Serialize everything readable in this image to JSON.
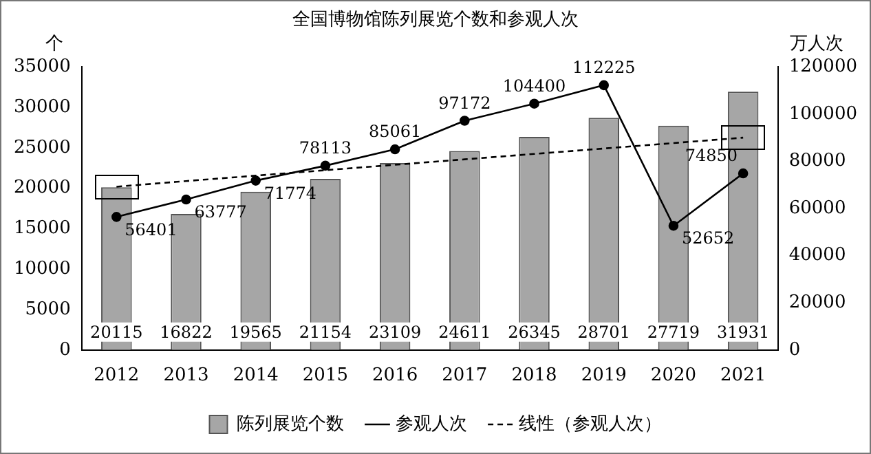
{
  "chart_data": {
    "type": "bar",
    "title": "全国博物馆陈列展览个数和参观人次",
    "ylabel": "个",
    "y2label": "万人次",
    "categories": [
      "2012",
      "2013",
      "2014",
      "2015",
      "2016",
      "2017",
      "2018",
      "2019",
      "2020",
      "2021"
    ],
    "series": [
      {
        "name": "陈列展览个数",
        "color": "#a6a6a6",
        "values": [
          20115,
          16822,
          19565,
          21154,
          23109,
          24611,
          26345,
          28701,
          27719,
          31931
        ],
        "value_labels": [
          "20115",
          "16822",
          "19565",
          "21154",
          "23109",
          "24611",
          "26345",
          "28701",
          "27719",
          "31931"
        ]
      },
      {
        "name": "参观人次",
        "type": "line",
        "axis": "y2",
        "color": "#000000",
        "marker": "circle",
        "values": [
          56401,
          63777,
          71774,
          78113,
          85061,
          97172,
          104400,
          112225,
          52652,
          74850
        ],
        "value_labels": [
          "56401",
          "63777",
          "71774",
          "78113",
          "85061",
          "97172",
          "104400",
          "112225",
          "52652",
          "74850"
        ]
      },
      {
        "name": "线性（参观人次）",
        "type": "line",
        "axis": "y2",
        "color": "#000000",
        "marker": "none",
        "line_style": "dashed",
        "values": [
          69200,
          71600,
          73900,
          76200,
          78500,
          80800,
          83100,
          85400,
          87700,
          90000
        ]
      }
    ],
    "ylim": [
      0,
      35000
    ],
    "yticks": [
      0,
      5000,
      10000,
      15000,
      20000,
      25000,
      30000,
      35000
    ],
    "y2lim": [
      0,
      120000
    ],
    "y2ticks": [
      0,
      20000,
      40000,
      60000,
      80000,
      100000,
      120000
    ],
    "legend": "bottom"
  }
}
